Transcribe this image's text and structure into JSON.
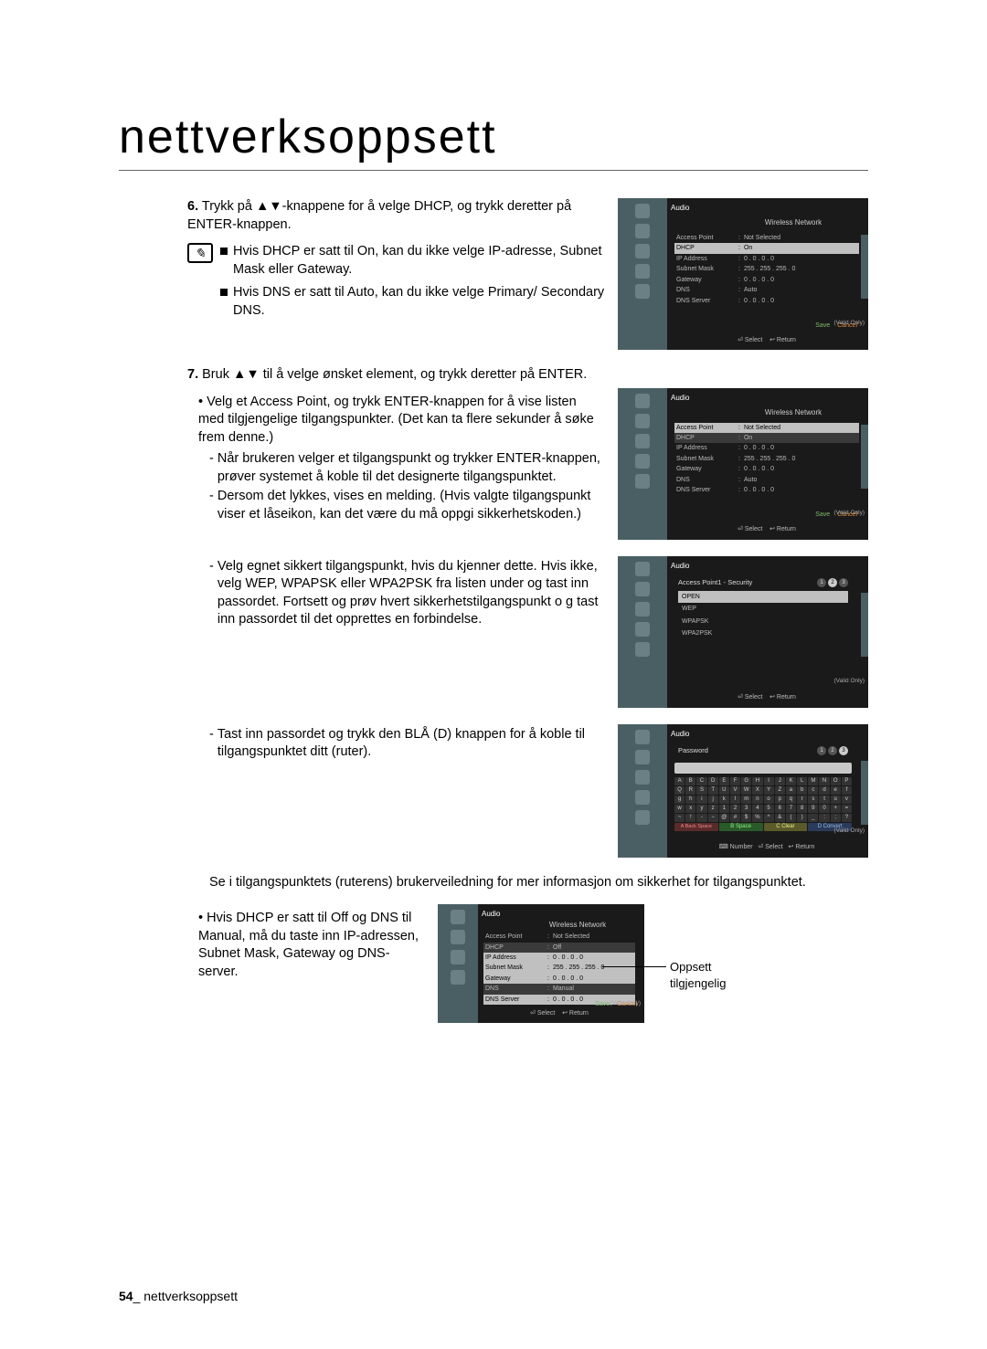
{
  "title": "nettverksoppsett",
  "step6": {
    "num": "6.",
    "line": "Trykk på ▲▼-knappene for å velge DHCP, og trykk deretter på ENTER-knappen.",
    "notes": [
      "Hvis DHCP er satt til On, kan du ikke velge IP-adresse, Subnet Mask eller Gateway.",
      "Hvis DNS er satt til Auto, kan du ikke velge Primary/ Secondary DNS."
    ]
  },
  "step7": {
    "num": "7.",
    "line": "Bruk ▲▼ til å velge ønsket element, og trykk deretter på ENTER.",
    "b1": "Velg et Access Point, og trykk ENTER-knappen for å vise listen med tilgjengelige tilgangspunkter. (Det kan ta flere sekunder å søke frem denne.)",
    "d1": "Når brukeren velger et tilgangspunkt og trykker ENTER-knappen, prøver systemet å koble til det designerte tilgangspunktet.",
    "d2": "Dersom det lykkes, vises en melding. (Hvis valgte tilgangspunkt viser et låseikon, kan det være du må oppgi sikkerhetskoden.)",
    "d3": "Velg egnet sikkert tilgangspunkt, hvis du kjenner dette. Hvis ikke, velg WEP, WPAPSK eller WPA2PSK fra listen under og tast inn passordet. Fortsett og prøv hvert sikkerhetstilgangspunkt o g tast inn passordet til det opprettes en forbindelse.",
    "d4": "Tast inn passordet og trykk den BLÅ (D) knappen for å koble til tilgangspunktet ditt (ruter).",
    "info": "Se i tilgangspunktets (ruterens) brukerveiledning for mer informasjon om sikkerhet for tilgangspunktet.",
    "b2": "Hvis DHCP er satt til Off og DNS til Manual, må du taste inn IP-adressen, Subnet Mask, Gateway og DNS-server."
  },
  "annot": "Oppsett tilgjengelig",
  "footer": {
    "page": "54",
    "sep": "_ ",
    "label": "nettverksoppsett"
  },
  "shot_common": {
    "audio": "Audio",
    "wnet": "Wireless Network",
    "ap": "Access Point",
    "ap_v": "Not Selected",
    "dhcp": "DHCP",
    "dhcp_on": "On",
    "dhcp_off": "Off",
    "ip": "IP Address",
    "ip_v": "0 . 0 . 0 . 0",
    "subnet": "Subnet Mask",
    "subnet_v": "255 . 255 . 255 . 0",
    "gateway": "Gateway",
    "gateway_v": "0 . 0 . 0 . 0",
    "dns": "DNS",
    "dns_auto": "Auto",
    "dns_manual": "Manual",
    "dns_srv": "DNS Server",
    "dns_srv_v": "0 . 0 . 0 . 0",
    "save": "Save",
    "cancel": "Cancel",
    "select": "Select",
    "return": "Return",
    "number": "Number",
    "valid": "(Valid Only)"
  },
  "shot_sec": {
    "title": "Access Point1 - Security",
    "items": [
      "OPEN",
      "WEP",
      "WPAPSK",
      "WPA2PSK"
    ]
  },
  "shot_pwd": {
    "title": "Password",
    "rows": [
      [
        "A",
        "B",
        "C",
        "D",
        "E",
        "F",
        "G",
        "H",
        "I",
        "J",
        "K",
        "L",
        "M",
        "N",
        "O",
        "P"
      ],
      [
        "Q",
        "R",
        "S",
        "T",
        "U",
        "V",
        "W",
        "X",
        "Y",
        "Z",
        "a",
        "b",
        "c",
        "d",
        "e",
        "f"
      ],
      [
        "g",
        "h",
        "i",
        "j",
        "k",
        "l",
        "m",
        "n",
        "o",
        "p",
        "q",
        "r",
        "s",
        "t",
        "u",
        "v"
      ],
      [
        "w",
        "x",
        "y",
        "z",
        "1",
        "2",
        "3",
        "4",
        "5",
        "6",
        "7",
        "8",
        "9",
        "0",
        "+",
        "="
      ],
      [
        "~",
        "!",
        "-",
        "−",
        "@",
        "#",
        "$",
        "%",
        "^",
        "&",
        "(",
        ")",
        "_",
        ":",
        ";",
        "?"
      ]
    ],
    "funcs": {
      "a": "A Back Space",
      "b": "B Space",
      "c": "C Clear",
      "d": "D Convert"
    }
  }
}
